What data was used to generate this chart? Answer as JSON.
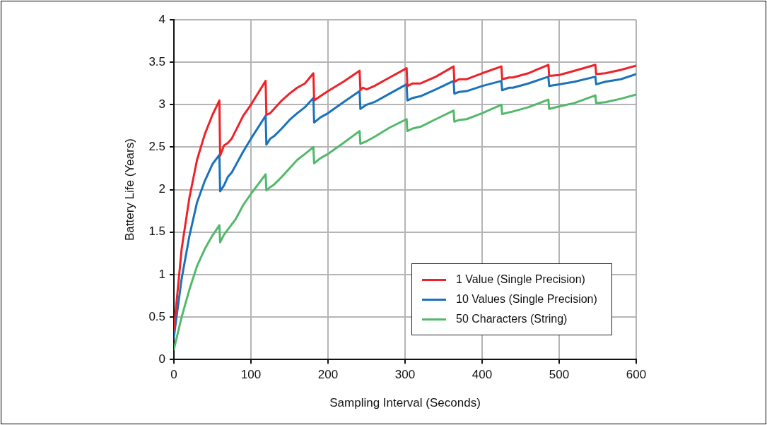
{
  "chart_data": {
    "type": "line",
    "xlabel": "Sampling Interval (Seconds)",
    "ylabel": "Battery Life (Years)",
    "xlim": [
      0,
      600
    ],
    "xticks": [
      0,
      100,
      200,
      300,
      400,
      500,
      600
    ],
    "ylim": [
      0,
      4
    ],
    "yticks": [
      0,
      0.5,
      1,
      1.5,
      2,
      2.5,
      3,
      3.5,
      4
    ],
    "grid": true,
    "legend": "bottom right",
    "marker": "none",
    "line_style": "solid",
    "series": [
      {
        "name": "1 Value (Single Precision)",
        "color": "#ee2229",
        "x": [
          0,
          10,
          20,
          30,
          40,
          50,
          59,
          60,
          65,
          70,
          75,
          90,
          100,
          119,
          120,
          125,
          130,
          140,
          150,
          160,
          170,
          181,
          182,
          190,
          200,
          220,
          241,
          242,
          245,
          250,
          260,
          280,
          302,
          303,
          310,
          320,
          340,
          363,
          364,
          370,
          380,
          400,
          425,
          426,
          435,
          440,
          460,
          486,
          487,
          500,
          520,
          547,
          548,
          560,
          580,
          600
        ],
        "values": [
          0.35,
          1.3,
          1.9,
          2.35,
          2.65,
          2.88,
          3.05,
          2.4,
          2.52,
          2.55,
          2.6,
          2.87,
          3.0,
          3.28,
          2.88,
          2.9,
          2.95,
          3.05,
          3.13,
          3.2,
          3.25,
          3.37,
          3.05,
          3.1,
          3.16,
          3.27,
          3.4,
          3.17,
          3.2,
          3.18,
          3.22,
          3.32,
          3.43,
          3.22,
          3.25,
          3.25,
          3.33,
          3.45,
          3.27,
          3.3,
          3.3,
          3.37,
          3.45,
          3.3,
          3.32,
          3.32,
          3.37,
          3.47,
          3.34,
          3.35,
          3.4,
          3.47,
          3.36,
          3.37,
          3.41,
          3.46
        ]
      },
      {
        "name": "10 Values (Single Precision)",
        "color": "#1a72bb",
        "x": [
          0,
          10,
          20,
          30,
          40,
          50,
          59,
          60,
          65,
          70,
          75,
          90,
          100,
          119,
          120,
          125,
          130,
          140,
          150,
          160,
          170,
          181,
          182,
          190,
          200,
          220,
          241,
          242,
          250,
          260,
          280,
          302,
          303,
          310,
          320,
          340,
          363,
          364,
          370,
          380,
          400,
          425,
          426,
          435,
          440,
          460,
          486,
          487,
          500,
          520,
          547,
          548,
          560,
          580,
          600
        ],
        "values": [
          0.27,
          0.95,
          1.45,
          1.85,
          2.1,
          2.3,
          2.41,
          1.98,
          2.05,
          2.15,
          2.2,
          2.45,
          2.6,
          2.87,
          2.53,
          2.6,
          2.63,
          2.72,
          2.82,
          2.9,
          2.97,
          3.08,
          2.79,
          2.85,
          2.9,
          3.03,
          3.16,
          2.95,
          3.0,
          3.03,
          3.13,
          3.24,
          3.05,
          3.08,
          3.1,
          3.18,
          3.28,
          3.13,
          3.15,
          3.16,
          3.22,
          3.28,
          3.17,
          3.2,
          3.2,
          3.25,
          3.33,
          3.22,
          3.24,
          3.27,
          3.33,
          3.24,
          3.27,
          3.3,
          3.36
        ]
      },
      {
        "name": "50 Characters (String)",
        "color": "#52b96b",
        "x": [
          0,
          10,
          20,
          30,
          40,
          50,
          59,
          60,
          65,
          70,
          80,
          90,
          100,
          119,
          120,
          125,
          130,
          140,
          150,
          160,
          170,
          181,
          182,
          190,
          200,
          220,
          241,
          242,
          250,
          260,
          280,
          302,
          303,
          310,
          320,
          340,
          363,
          364,
          370,
          380,
          400,
          425,
          426,
          435,
          440,
          460,
          486,
          487,
          500,
          520,
          547,
          548,
          560,
          580,
          600
        ],
        "values": [
          0.12,
          0.5,
          0.82,
          1.1,
          1.3,
          1.46,
          1.58,
          1.38,
          1.47,
          1.53,
          1.65,
          1.82,
          1.95,
          2.18,
          1.99,
          2.03,
          2.06,
          2.15,
          2.25,
          2.35,
          2.42,
          2.5,
          2.31,
          2.37,
          2.42,
          2.55,
          2.69,
          2.54,
          2.57,
          2.62,
          2.73,
          2.83,
          2.69,
          2.72,
          2.74,
          2.83,
          2.93,
          2.8,
          2.82,
          2.83,
          2.9,
          3.0,
          2.89,
          2.91,
          2.92,
          2.97,
          3.06,
          2.95,
          2.98,
          3.02,
          3.11,
          3.02,
          3.03,
          3.07,
          3.12
        ]
      }
    ]
  }
}
